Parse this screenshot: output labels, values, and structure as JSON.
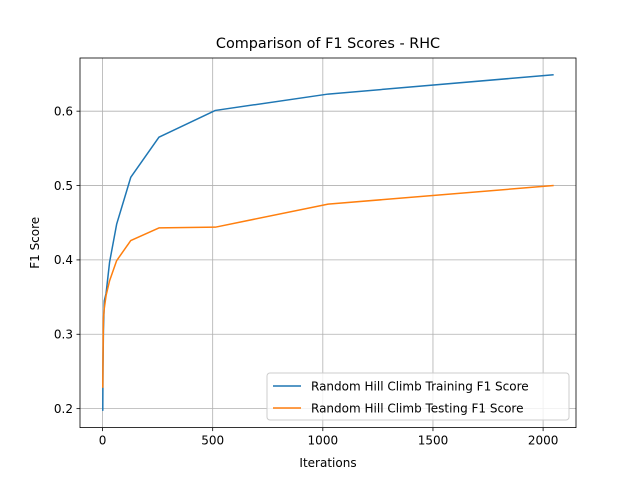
{
  "chart_data": {
    "type": "line",
    "title": "Comparison of F1 Scores - RHC",
    "xlabel": "Iterations",
    "ylabel": "F1 Score",
    "xlim": [
      -102.35,
      2149.35
    ],
    "ylim": [
      0.1745,
      0.6715
    ],
    "xticks": [
      0,
      500,
      1000,
      1500,
      2000
    ],
    "xtick_labels": [
      "0",
      "500",
      "1000",
      "1500",
      "2000"
    ],
    "yticks": [
      0.2,
      0.3,
      0.4,
      0.5,
      0.6
    ],
    "ytick_labels": [
      "0.2",
      "0.3",
      "0.4",
      "0.5",
      "0.6"
    ],
    "grid": true,
    "legend_position": "lower-right",
    "series": [
      {
        "name": "Random Hill Climb Training F1 Score",
        "color": "#1f77b4",
        "x": [
          1,
          2,
          4,
          8,
          16,
          32,
          64,
          128,
          256,
          512,
          1024,
          2048
        ],
        "y": [
          0.197,
          0.255,
          0.305,
          0.345,
          0.355,
          0.397,
          0.448,
          0.511,
          0.565,
          0.601,
          0.623,
          0.649
        ]
      },
      {
        "name": "Random Hill Climb Testing F1 Score",
        "color": "#ff7f0e",
        "x": [
          1,
          2,
          4,
          8,
          16,
          32,
          64,
          128,
          256,
          512,
          1024,
          2048
        ],
        "y": [
          0.228,
          0.265,
          0.322,
          0.335,
          0.352,
          0.372,
          0.399,
          0.426,
          0.443,
          0.444,
          0.475,
          0.5
        ]
      }
    ]
  }
}
